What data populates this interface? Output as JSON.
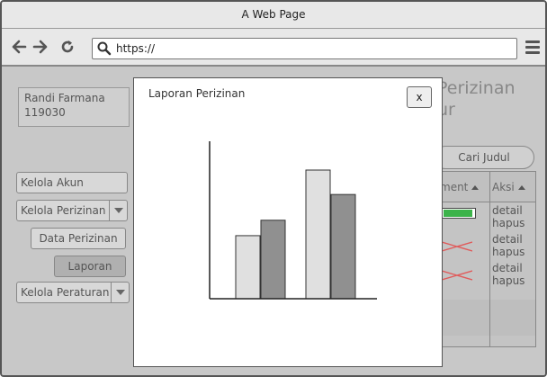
{
  "browser": {
    "window_title": "A Web Page",
    "url": "https://"
  },
  "user": {
    "name": "Randi Farmana",
    "id": "119030"
  },
  "sidebar": {
    "items": [
      {
        "label": "Kelola Akun"
      },
      {
        "label": "Kelola Perizinan"
      },
      {
        "label": "Data Perizinan"
      },
      {
        "label": "Laporan"
      },
      {
        "label": "Kelola Peraturan"
      }
    ]
  },
  "background": {
    "title_line1": "Perizinan",
    "title_line2": "ur",
    "search_label": "Cari Judul",
    "table": {
      "col1_header": "ment",
      "col2_header": "Aksi",
      "rows": [
        {
          "status": "progress",
          "progress": 0.95,
          "detail": "detail",
          "hapus": "hapus"
        },
        {
          "status": "rejected",
          "detail": "detail",
          "hapus": "hapus"
        },
        {
          "status": "rejected",
          "detail": "detail",
          "hapus": "hapus"
        }
      ]
    }
  },
  "modal": {
    "title": "Laporan Perizinan",
    "close_label": "x"
  },
  "chart_data": {
    "type": "bar",
    "categories": [
      "",
      ""
    ],
    "series": [
      {
        "values": [
          49,
          62
        ]
      },
      {
        "values": [
          61,
          81
        ]
      },
      {
        "values": [
          100,
          80
        ]
      }
    ],
    "ylim": [
      0,
      100
    ],
    "grid": false,
    "colors": [
      "#e0e0e0",
      "#909090"
    ]
  },
  "colors": {
    "progress_green": "#3cb34a",
    "reject_red": "#e05a5a"
  }
}
